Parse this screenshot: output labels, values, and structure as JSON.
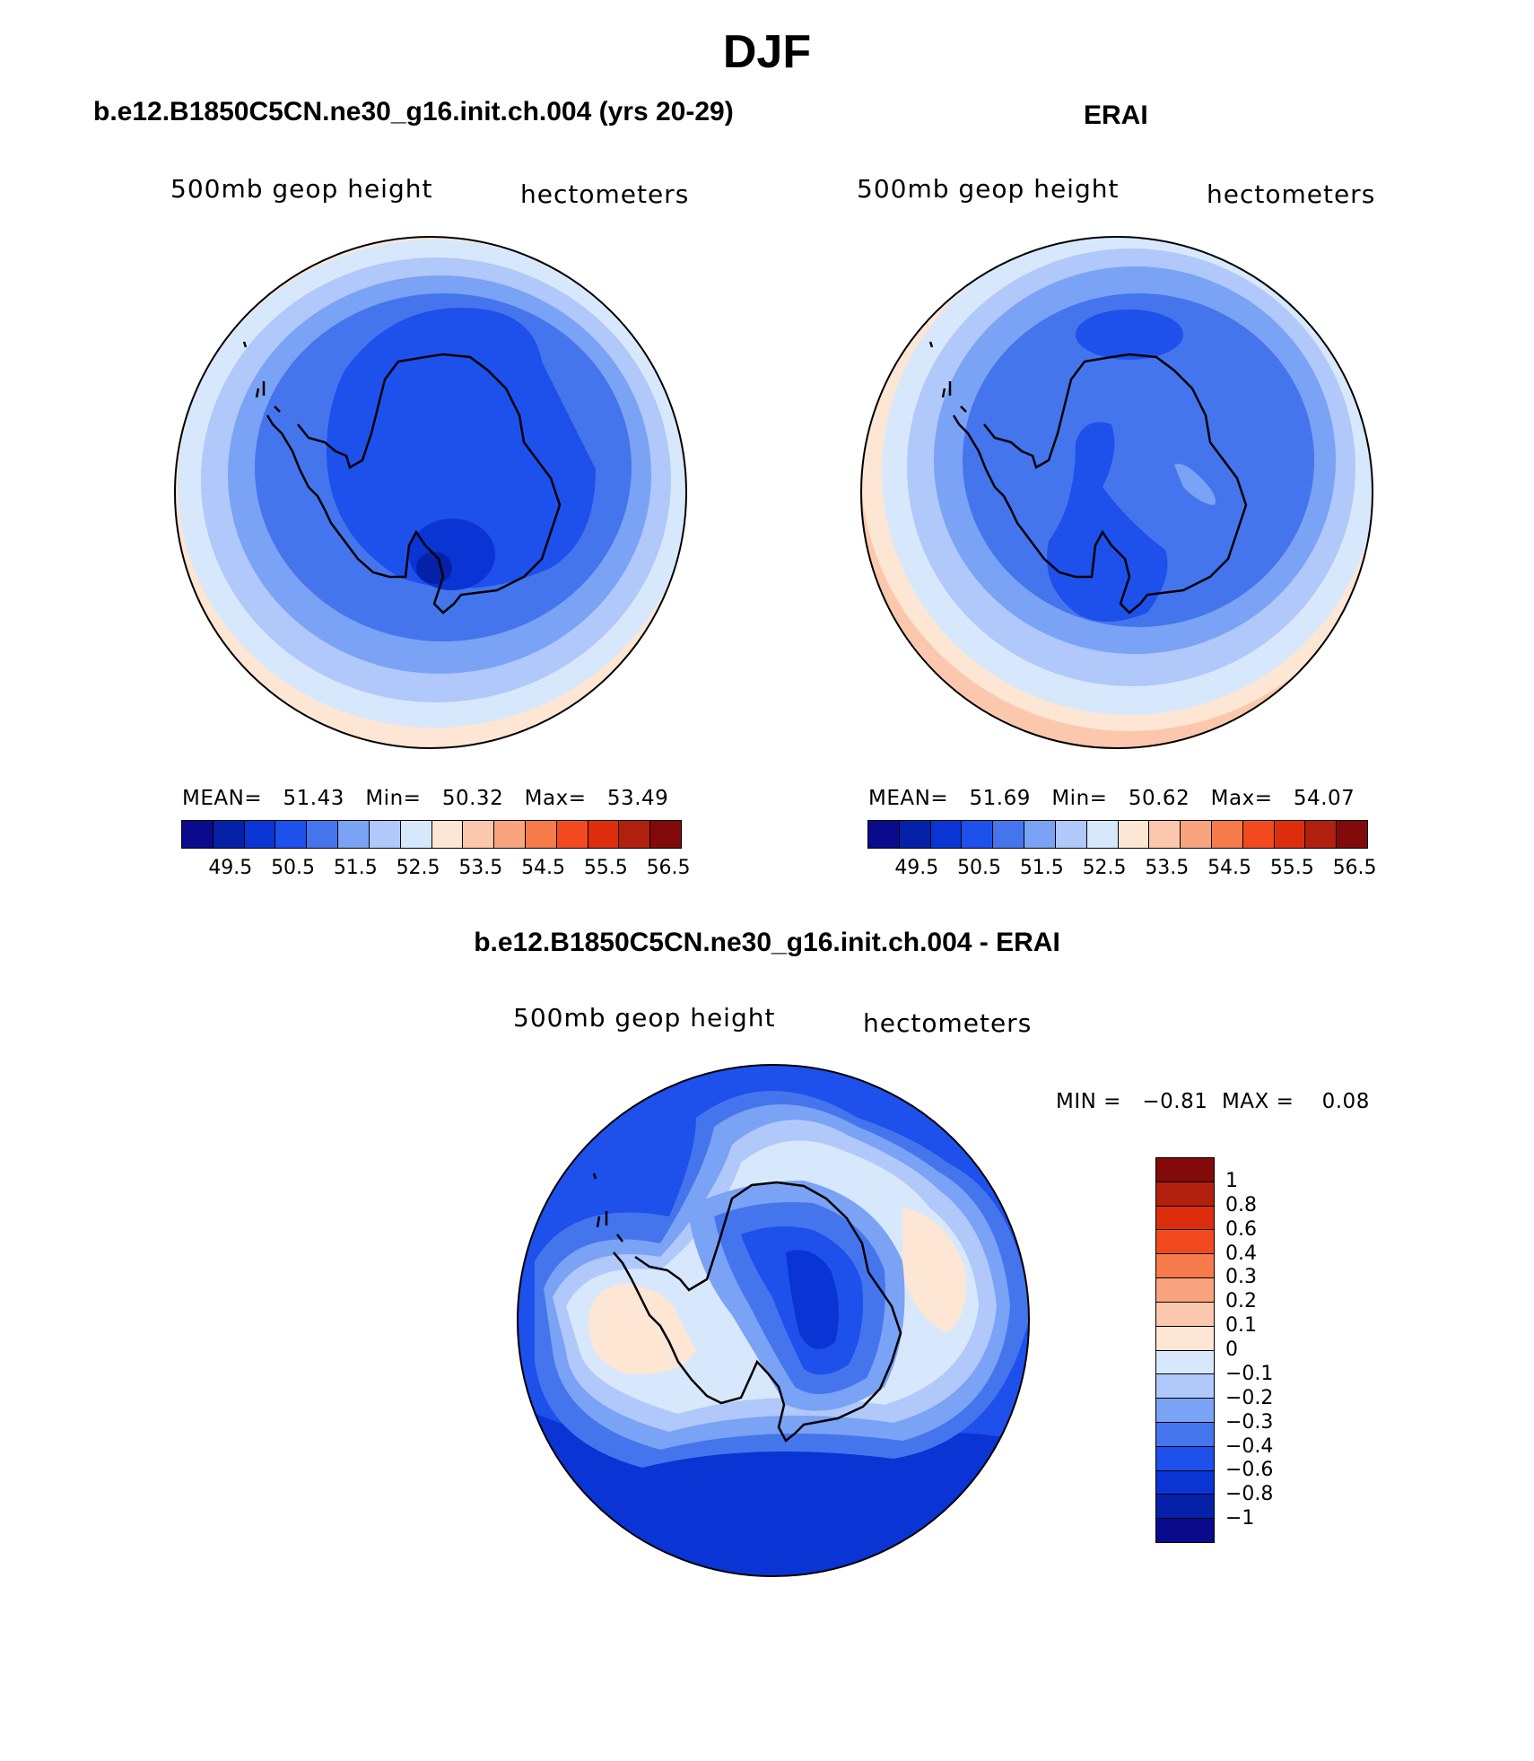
{
  "title": "DJF",
  "panels": [
    {
      "id": "model",
      "title": "b.e12.B1850C5CN.ne30_g16.init.ch.004 (yrs 20-29)",
      "left_label": "500mb geop height",
      "right_label": "hectometers",
      "stats": {
        "mean_label": "MEAN=",
        "mean": "51.43",
        "min_label": "Min=",
        "min": "50.32",
        "max_label": "Max=",
        "max": "53.49"
      },
      "colorbar_labels": [
        "49.5",
        "50.5",
        "51.5",
        "52.5",
        "53.5",
        "54.5",
        "55.5",
        "56.5"
      ]
    },
    {
      "id": "obs",
      "title": "ERAI",
      "left_label": "500mb geop height",
      "right_label": "hectometers",
      "stats": {
        "mean_label": "MEAN=",
        "mean": "51.69",
        "min_label": "Min=",
        "min": "50.62",
        "max_label": "Max=",
        "max": "54.07"
      },
      "colorbar_labels": [
        "49.5",
        "50.5",
        "51.5",
        "52.5",
        "53.5",
        "54.5",
        "55.5",
        "56.5"
      ]
    }
  ],
  "diff": {
    "title": "b.e12.B1850C5CN.ne30_g16.init.ch.004 - ERAI",
    "left_label": "500mb geop height",
    "right_label": "hectometers",
    "minmax": "MIN =   −0.81  MAX =    0.08",
    "colorbar_labels": [
      "1",
      "0.8",
      "0.6",
      "0.4",
      "0.3",
      "0.2",
      "0.1",
      "0",
      "−0.1",
      "−0.2",
      "−0.3",
      "−0.4",
      "−0.6",
      "−0.8",
      "−1"
    ]
  },
  "colors": {
    "abs_scale": [
      "#0a0a8c",
      "#0521a8",
      "#0a35d4",
      "#1e50ec",
      "#4575ec",
      "#7aa2f5",
      "#b0c8fa",
      "#d8e8fc",
      "#fde6d4",
      "#fcc8ad",
      "#f9a47e",
      "#f67a4a",
      "#f24a1e",
      "#dc2e0c",
      "#b0200c",
      "#820a0a"
    ],
    "diff_scale": [
      "#820a0a",
      "#b0200c",
      "#dc2e0c",
      "#f24a1e",
      "#f67a4a",
      "#f9a47e",
      "#fcc8ad",
      "#fde6d4",
      "#d8e8fc",
      "#b0c8fa",
      "#7aa2f5",
      "#4575ec",
      "#1e50ec",
      "#0a35d4",
      "#0521a8",
      "#0a0a8c"
    ]
  }
}
